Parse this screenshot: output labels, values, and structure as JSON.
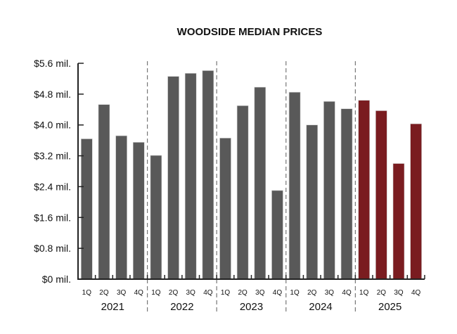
{
  "chart_data": {
    "type": "bar",
    "title": "WOODSIDE MEDIAN PRICES",
    "xlabel": "",
    "ylabel": "",
    "ylim": [
      0,
      5.6
    ],
    "y_ticks": [
      "$0 mil.",
      "$0.8 mil.",
      "$1.6 mil.",
      "$2.4 mil.",
      "$3.2 mil.",
      "$4.0 mil.",
      "$4.8 mil.",
      "$5.6 mil."
    ],
    "y_tick_values": [
      0,
      0.8,
      1.6,
      2.4,
      3.2,
      4.0,
      4.8,
      5.6
    ],
    "quarters": [
      "1Q",
      "2Q",
      "3Q",
      "4Q"
    ],
    "years": [
      "2021",
      "2022",
      "2023",
      "2024",
      "2025"
    ],
    "values_mil": [
      [
        3.64,
        4.53,
        3.72,
        3.55
      ],
      [
        3.21,
        5.26,
        5.34,
        5.41
      ],
      [
        3.66,
        4.5,
        4.98,
        2.3
      ],
      [
        4.85,
        4.0,
        4.61,
        4.42
      ],
      [
        4.64,
        4.37,
        3.0,
        4.03
      ]
    ],
    "grid": false,
    "year_separators": "dashed",
    "colors": {
      "default": "#595959",
      "highlight_2025": "#7a1c20",
      "axis": "#222222",
      "separator": "#777777"
    }
  }
}
